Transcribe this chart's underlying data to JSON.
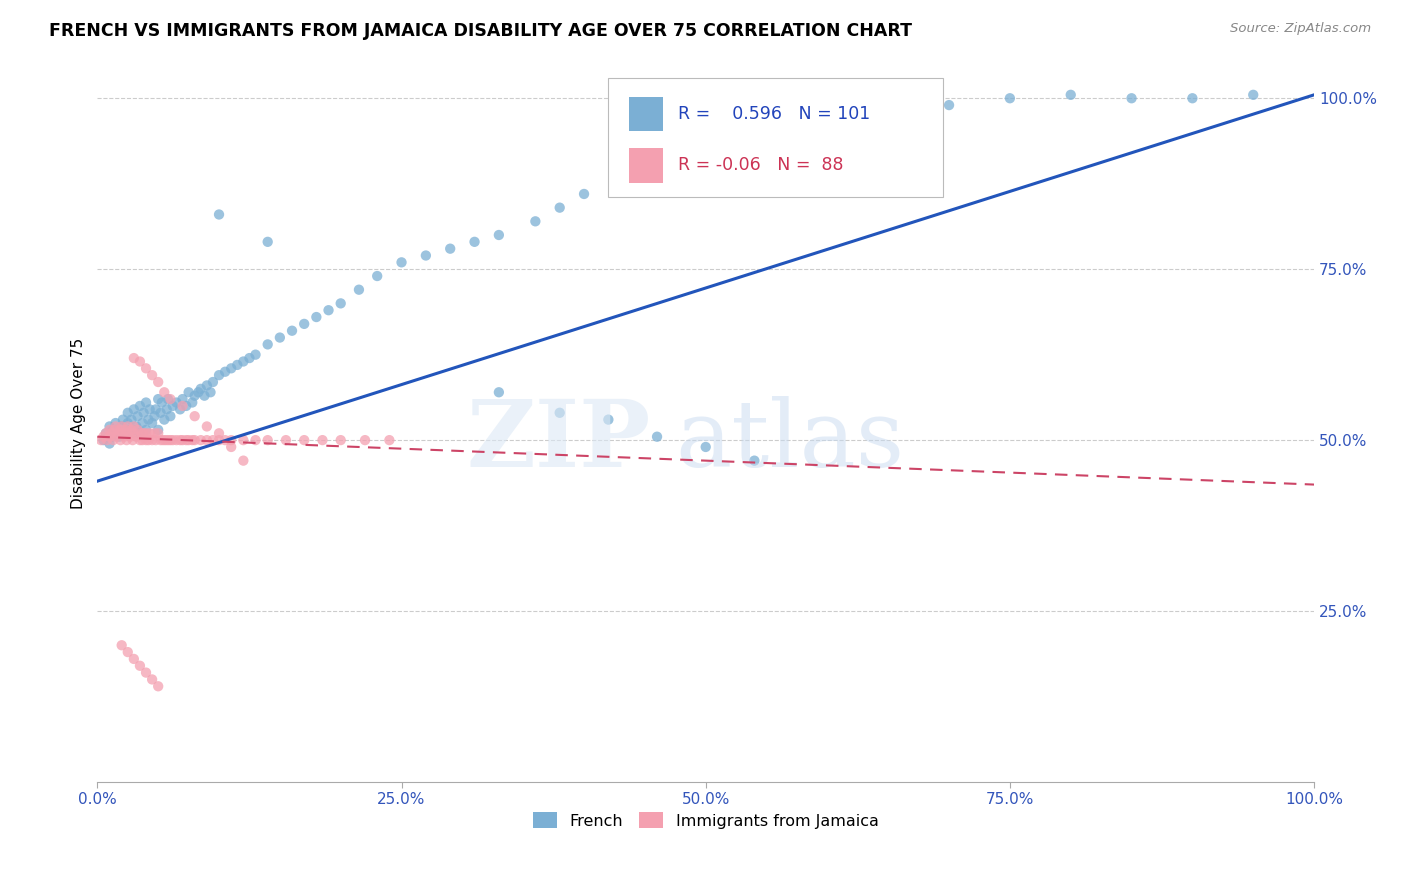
{
  "title": "FRENCH VS IMMIGRANTS FROM JAMAICA DISABILITY AGE OVER 75 CORRELATION CHART",
  "source": "Source: ZipAtlas.com",
  "ylabel": "Disability Age Over 75",
  "blue_R": 0.596,
  "blue_N": 101,
  "pink_R": -0.06,
  "pink_N": 88,
  "blue_color": "#7bafd4",
  "pink_color": "#f4a0b0",
  "blue_line_color": "#2255bb",
  "pink_line_color": "#cc4466",
  "legend_blue_label": "French",
  "legend_pink_label": "Immigrants from Jamaica",
  "blue_line_x0": 0.0,
  "blue_line_y0": 0.44,
  "blue_line_x1": 1.0,
  "blue_line_y1": 1.005,
  "pink_line_x0": 0.0,
  "pink_line_y0": 0.505,
  "pink_line_x1": 1.0,
  "pink_line_y1": 0.435,
  "xlim_min": 0.0,
  "xlim_max": 1.0,
  "ylim_min": 0.0,
  "ylim_max": 1.05,
  "xtick_vals": [
    0.0,
    0.25,
    0.5,
    0.75,
    1.0
  ],
  "xtick_labels": [
    "0.0%",
    "25.0%",
    "50.0%",
    "75.0%",
    "100.0%"
  ],
  "ytick_vals": [
    0.25,
    0.5,
    0.75,
    1.0
  ],
  "ytick_labels": [
    "25.0%",
    "50.0%",
    "75.0%",
    "100.0%"
  ],
  "blue_x": [
    0.005,
    0.007,
    0.01,
    0.01,
    0.012,
    0.013,
    0.015,
    0.015,
    0.018,
    0.02,
    0.021,
    0.022,
    0.024,
    0.025,
    0.025,
    0.027,
    0.028,
    0.03,
    0.03,
    0.032,
    0.033,
    0.035,
    0.035,
    0.037,
    0.038,
    0.04,
    0.04,
    0.042,
    0.043,
    0.045,
    0.047,
    0.048,
    0.05,
    0.05,
    0.052,
    0.053,
    0.055,
    0.057,
    0.058,
    0.06,
    0.062,
    0.065,
    0.068,
    0.07,
    0.073,
    0.075,
    0.078,
    0.08,
    0.083,
    0.085,
    0.088,
    0.09,
    0.093,
    0.095,
    0.1,
    0.105,
    0.11,
    0.115,
    0.12,
    0.125,
    0.13,
    0.14,
    0.15,
    0.16,
    0.17,
    0.18,
    0.19,
    0.2,
    0.215,
    0.23,
    0.25,
    0.27,
    0.29,
    0.31,
    0.33,
    0.36,
    0.38,
    0.4,
    0.43,
    0.46,
    0.49,
    0.52,
    0.55,
    0.58,
    0.61,
    0.64,
    0.67,
    0.7,
    0.75,
    0.8,
    0.85,
    0.9,
    0.95,
    0.33,
    0.38,
    0.42,
    0.46,
    0.5,
    0.54,
    0.1,
    0.14
  ],
  "blue_y": [
    0.5,
    0.51,
    0.495,
    0.52,
    0.505,
    0.515,
    0.51,
    0.525,
    0.505,
    0.52,
    0.53,
    0.51,
    0.515,
    0.525,
    0.54,
    0.51,
    0.53,
    0.515,
    0.545,
    0.52,
    0.535,
    0.51,
    0.55,
    0.525,
    0.54,
    0.515,
    0.555,
    0.53,
    0.545,
    0.525,
    0.535,
    0.545,
    0.515,
    0.56,
    0.54,
    0.555,
    0.53,
    0.545,
    0.56,
    0.535,
    0.55,
    0.555,
    0.545,
    0.56,
    0.55,
    0.57,
    0.555,
    0.565,
    0.57,
    0.575,
    0.565,
    0.58,
    0.57,
    0.585,
    0.595,
    0.6,
    0.605,
    0.61,
    0.615,
    0.62,
    0.625,
    0.64,
    0.65,
    0.66,
    0.67,
    0.68,
    0.69,
    0.7,
    0.72,
    0.74,
    0.76,
    0.77,
    0.78,
    0.79,
    0.8,
    0.82,
    0.84,
    0.86,
    0.88,
    0.9,
    0.92,
    0.93,
    0.94,
    0.95,
    0.96,
    0.97,
    0.98,
    0.99,
    1.0,
    1.005,
    1.0,
    1.0,
    1.005,
    0.57,
    0.54,
    0.53,
    0.505,
    0.49,
    0.47,
    0.83,
    0.79
  ],
  "pink_x": [
    0.003,
    0.005,
    0.007,
    0.008,
    0.01,
    0.01,
    0.012,
    0.013,
    0.014,
    0.015,
    0.015,
    0.017,
    0.018,
    0.019,
    0.02,
    0.02,
    0.022,
    0.023,
    0.024,
    0.025,
    0.025,
    0.027,
    0.028,
    0.029,
    0.03,
    0.03,
    0.032,
    0.033,
    0.035,
    0.036,
    0.037,
    0.038,
    0.04,
    0.04,
    0.042,
    0.043,
    0.045,
    0.047,
    0.048,
    0.05,
    0.052,
    0.054,
    0.056,
    0.058,
    0.06,
    0.062,
    0.065,
    0.068,
    0.07,
    0.073,
    0.075,
    0.078,
    0.08,
    0.085,
    0.09,
    0.095,
    0.1,
    0.105,
    0.11,
    0.12,
    0.13,
    0.14,
    0.155,
    0.17,
    0.185,
    0.2,
    0.22,
    0.24,
    0.03,
    0.035,
    0.04,
    0.045,
    0.05,
    0.055,
    0.06,
    0.07,
    0.08,
    0.09,
    0.1,
    0.11,
    0.12,
    0.02,
    0.025,
    0.03,
    0.035,
    0.04,
    0.045,
    0.05
  ],
  "pink_y": [
    0.5,
    0.505,
    0.51,
    0.5,
    0.505,
    0.515,
    0.51,
    0.5,
    0.515,
    0.505,
    0.52,
    0.51,
    0.515,
    0.5,
    0.51,
    0.52,
    0.505,
    0.515,
    0.5,
    0.51,
    0.52,
    0.505,
    0.515,
    0.5,
    0.51,
    0.52,
    0.505,
    0.515,
    0.5,
    0.51,
    0.5,
    0.51,
    0.5,
    0.51,
    0.5,
    0.51,
    0.5,
    0.51,
    0.5,
    0.51,
    0.5,
    0.5,
    0.5,
    0.5,
    0.5,
    0.5,
    0.5,
    0.5,
    0.5,
    0.5,
    0.5,
    0.5,
    0.5,
    0.5,
    0.5,
    0.5,
    0.5,
    0.5,
    0.5,
    0.5,
    0.5,
    0.5,
    0.5,
    0.5,
    0.5,
    0.5,
    0.5,
    0.5,
    0.62,
    0.615,
    0.605,
    0.595,
    0.585,
    0.57,
    0.56,
    0.55,
    0.535,
    0.52,
    0.51,
    0.49,
    0.47,
    0.2,
    0.19,
    0.18,
    0.17,
    0.16,
    0.15,
    0.14
  ]
}
